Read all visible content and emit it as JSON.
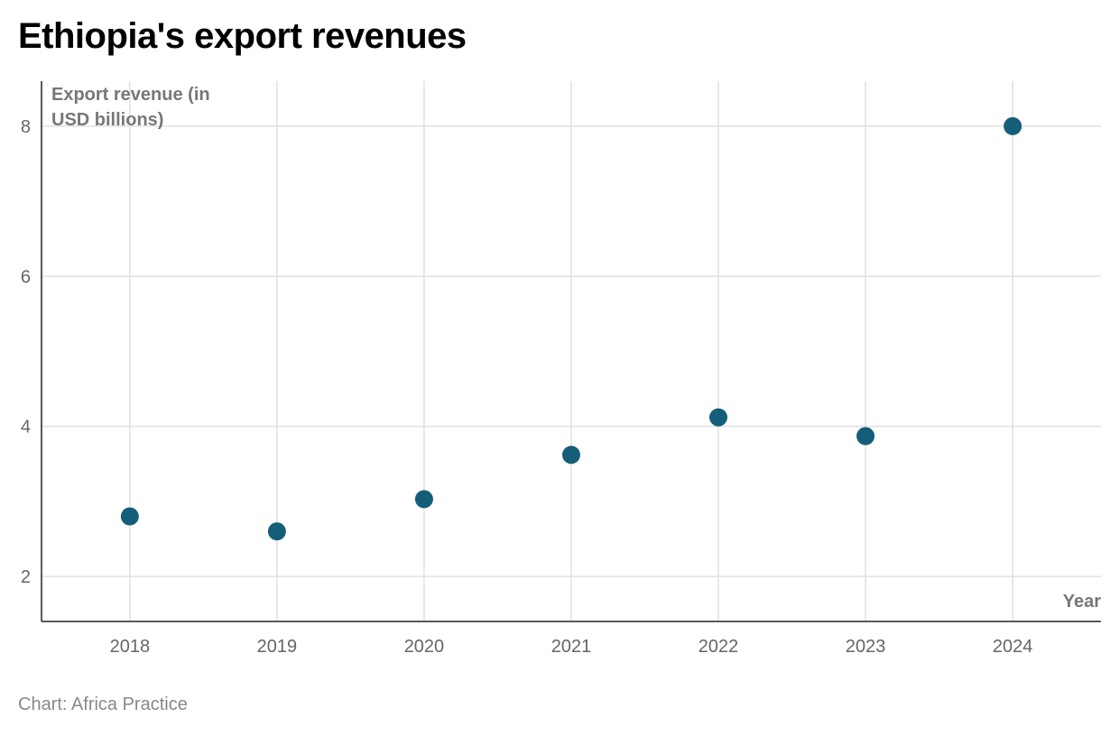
{
  "chart_data": {
    "type": "scatter",
    "title": "Ethiopia's export revenues",
    "xlabel": "Year",
    "ylabel_lines": [
      "Export revenue (in",
      "USD billions)"
    ],
    "x": [
      2018,
      2019,
      2020,
      2021,
      2022,
      2023,
      2024
    ],
    "y": [
      2.8,
      2.6,
      3.03,
      3.62,
      4.12,
      3.87,
      8.0
    ],
    "xticks": [
      "2018",
      "2019",
      "2020",
      "2021",
      "2022",
      "2023",
      "2024"
    ],
    "yticks": [
      "2",
      "4",
      "6",
      "8"
    ],
    "xlim": [
      2017.4,
      2024.6
    ],
    "ylim": [
      1.4,
      8.6
    ],
    "grid": true,
    "marker_color": "#155e79",
    "grid_color": "#e0e0e0"
  },
  "source": "Chart: Africa Practice"
}
